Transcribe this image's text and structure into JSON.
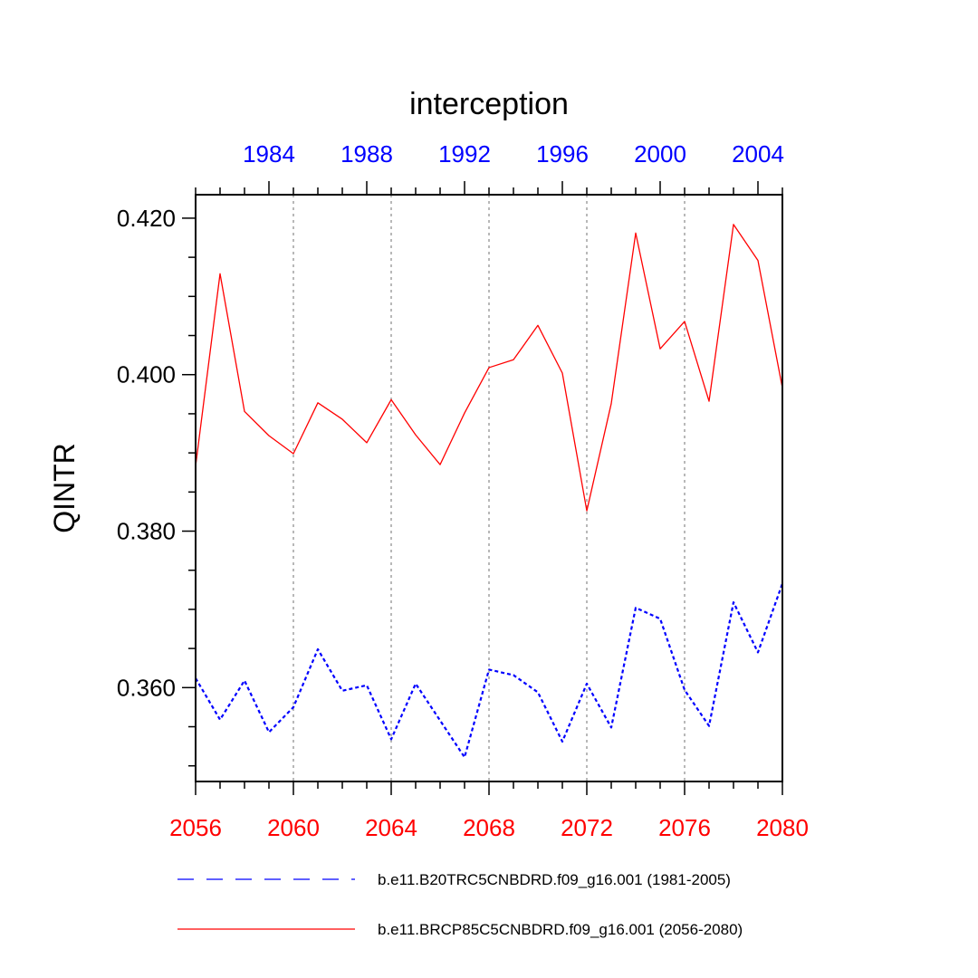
{
  "chart_data": {
    "type": "line",
    "title": "interception",
    "ylabel": "QINTR",
    "xlabel": "",
    "ylim": [
      0.348,
      0.423
    ],
    "y_ticks": [
      "0.360",
      "0.380",
      "0.400",
      "0.420"
    ],
    "grid": "vertical dotted gray lines at labeled bottom-axis ticks",
    "legend_placement": "bottom",
    "bottom_axis": {
      "color": "#ff0000",
      "range": [
        2056,
        2080
      ],
      "tick_labels": [
        "2056",
        "2060",
        "2064",
        "2068",
        "2072",
        "2076",
        "2080"
      ]
    },
    "top_axis": {
      "color": "#0000ff",
      "range": [
        1981,
        2005
      ],
      "tick_labels": [
        "1984",
        "1988",
        "1992",
        "1996",
        "2000",
        "2004"
      ]
    },
    "series": [
      {
        "name": "b.e11.BRCP85C5CNBDRD.f09_g16.001 (2056-2080)",
        "color": "#ff0000",
        "style": "solid",
        "axis": "bottom",
        "x": [
          2056,
          2057,
          2058,
          2059,
          2060,
          2061,
          2062,
          2063,
          2064,
          2065,
          2066,
          2067,
          2068,
          2069,
          2070,
          2071,
          2072,
          2073,
          2074,
          2075,
          2076,
          2077,
          2078,
          2079,
          2080
        ],
        "values": [
          0.3883,
          0.4129,
          0.3953,
          0.3922,
          0.3899,
          0.3964,
          0.3943,
          0.3913,
          0.3968,
          0.3923,
          0.3885,
          0.3951,
          0.4009,
          0.4019,
          0.4063,
          0.4002,
          0.3826,
          0.3963,
          0.4181,
          0.4033,
          0.4068,
          0.3966,
          0.4192,
          0.4146,
          0.3983
        ]
      },
      {
        "name": "b.e11.B20TRC5CNBDRD.f09_g16.001 (1981-2005)",
        "color": "#0000ff",
        "style": "dashed",
        "axis": "top",
        "x": [
          1981,
          1982,
          1983,
          1984,
          1985,
          1986,
          1987,
          1988,
          1989,
          1990,
          1991,
          1992,
          1993,
          1994,
          1995,
          1996,
          1997,
          1998,
          1999,
          2000,
          2001,
          2002,
          2003,
          2004,
          2005
        ],
        "values": [
          0.3612,
          0.3559,
          0.3609,
          0.3543,
          0.3575,
          0.3649,
          0.3596,
          0.3603,
          0.3534,
          0.3605,
          0.3558,
          0.3511,
          0.3623,
          0.3616,
          0.3594,
          0.3531,
          0.3605,
          0.3549,
          0.3702,
          0.3688,
          0.3597,
          0.3551,
          0.3709,
          0.3645,
          0.3733
        ]
      }
    ],
    "legend": [
      {
        "label": "b.e11.B20TRC5CNBDRD.f09_g16.001 (1981-2005)",
        "color": "#0000ff",
        "style": "dashed"
      },
      {
        "label": "b.e11.BRCP85C5CNBDRD.f09_g16.001 (2056-2080)",
        "color": "#ff0000",
        "style": "solid"
      }
    ]
  }
}
